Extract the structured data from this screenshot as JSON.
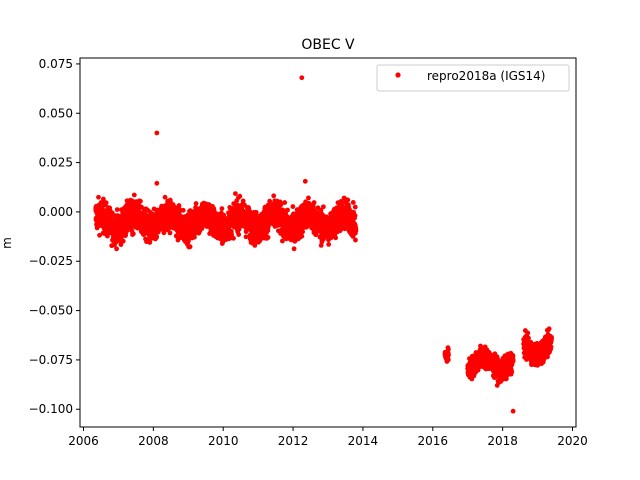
{
  "chart_data": {
    "type": "scatter",
    "title": "OBEC V",
    "xlabel": "",
    "ylabel": "m",
    "xlim": [
      2005.9,
      2020.1
    ],
    "ylim": [
      -0.109,
      0.078
    ],
    "x_ticks": [
      2006,
      2008,
      2010,
      2012,
      2014,
      2016,
      2018,
      2020
    ],
    "x_tick_labels": [
      "2006",
      "2008",
      "2010",
      "2012",
      "2014",
      "2016",
      "2018",
      "2020"
    ],
    "y_ticks": [
      0.075,
      0.05,
      0.025,
      0.0,
      -0.025,
      -0.05,
      -0.075,
      -0.1
    ],
    "y_tick_labels": [
      "0.075",
      "0.050",
      "0.025",
      "0.000",
      "−0.025",
      "−0.050",
      "−0.075",
      "−0.100"
    ],
    "grid": false,
    "legend_position": "top-right",
    "series": [
      {
        "name": "repro2018a (IGS14)",
        "color": "#ff0000",
        "marker": "circle",
        "segments": [
          {
            "x_start": 2006.35,
            "x_end": 2013.8,
            "mean": -0.005,
            "spread": 0.0065
          },
          {
            "x_start": 2016.35,
            "x_end": 2016.45,
            "mean": -0.076,
            "spread": 0.003
          },
          {
            "x_start": 2017.0,
            "x_end": 2018.3,
            "mean": -0.077,
            "spread": 0.0045
          },
          {
            "x_start": 2018.6,
            "x_end": 2019.4,
            "mean": -0.069,
            "spread": 0.0045
          }
        ],
        "outliers": [
          {
            "x": 2008.1,
            "y": 0.04
          },
          {
            "x": 2012.25,
            "y": 0.068
          },
          {
            "x": 2012.35,
            "y": 0.0155
          },
          {
            "x": 2008.1,
            "y": 0.0145
          },
          {
            "x": 2018.3,
            "y": -0.101
          }
        ]
      }
    ]
  }
}
